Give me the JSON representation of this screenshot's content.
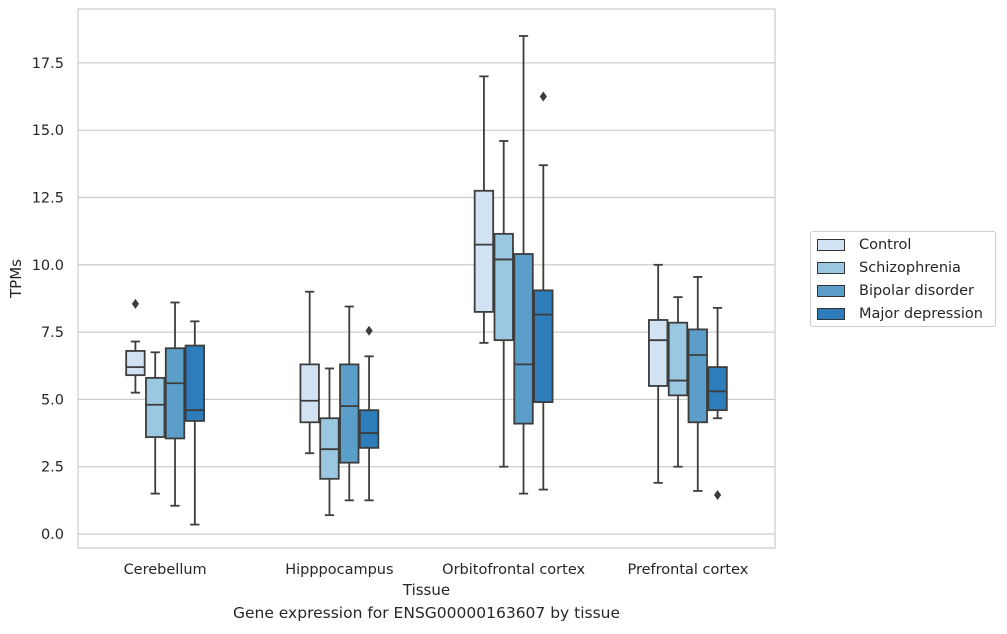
{
  "caption": "Gene expression for ENSG00000163607 by tissue",
  "chart_data": {
    "type": "box",
    "title": "",
    "xlabel": "Tissue",
    "ylabel": "TPMs",
    "ylim": [
      -0.5,
      19.3
    ],
    "yticks": [
      0.0,
      2.5,
      5.0,
      7.5,
      10.0,
      12.5,
      15.0,
      17.5
    ],
    "ytick_labels": [
      "0.0",
      "2.5",
      "5.0",
      "7.5",
      "10.0",
      "12.5",
      "15.0",
      "17.5"
    ],
    "grid": "horizontal",
    "legend_position": "right",
    "categories": [
      "Cerebellum",
      "Hipppocampus",
      "Orbitofrontal cortex",
      "Prefrontal cortex"
    ],
    "series": [
      {
        "name": "Control",
        "color": "#d1e2f2",
        "boxes": [
          {
            "whisker_low": 5.25,
            "q1": 5.9,
            "median": 6.2,
            "q3": 6.8,
            "whisker_high": 7.15,
            "outliers": [
              8.55
            ]
          },
          {
            "whisker_low": 3.0,
            "q1": 4.15,
            "median": 4.95,
            "q3": 6.3,
            "whisker_high": 9.0,
            "outliers": []
          },
          {
            "whisker_low": 7.1,
            "q1": 8.25,
            "median": 10.75,
            "q3": 12.75,
            "whisker_high": 17.0,
            "outliers": []
          },
          {
            "whisker_low": 1.9,
            "q1": 5.5,
            "median": 7.2,
            "q3": 7.95,
            "whisker_high": 10.0,
            "outliers": []
          }
        ]
      },
      {
        "name": "Schizophrenia",
        "color": "#9ac8e0",
        "boxes": [
          {
            "whisker_low": 1.5,
            "q1": 3.6,
            "median": 4.8,
            "q3": 5.8,
            "whisker_high": 6.75,
            "outliers": []
          },
          {
            "whisker_low": 0.7,
            "q1": 2.05,
            "median": 3.15,
            "q3": 4.3,
            "whisker_high": 6.15,
            "outliers": []
          },
          {
            "whisker_low": 2.5,
            "q1": 7.2,
            "median": 10.2,
            "q3": 11.15,
            "whisker_high": 14.6,
            "outliers": []
          },
          {
            "whisker_low": 2.5,
            "q1": 5.15,
            "median": 5.7,
            "q3": 7.85,
            "whisker_high": 8.8,
            "outliers": []
          }
        ]
      },
      {
        "name": "Bipolar disorder",
        "color": "#5b9ec9",
        "boxes": [
          {
            "whisker_low": 1.05,
            "q1": 3.55,
            "median": 5.6,
            "q3": 6.9,
            "whisker_high": 8.6,
            "outliers": []
          },
          {
            "whisker_low": 1.25,
            "q1": 2.65,
            "median": 4.75,
            "q3": 6.3,
            "whisker_high": 8.45,
            "outliers": []
          },
          {
            "whisker_low": 1.5,
            "q1": 4.1,
            "median": 6.3,
            "q3": 10.4,
            "whisker_high": 18.5,
            "outliers": []
          },
          {
            "whisker_low": 1.6,
            "q1": 4.15,
            "median": 6.65,
            "q3": 7.6,
            "whisker_high": 9.55,
            "outliers": []
          }
        ]
      },
      {
        "name": "Major depression",
        "color": "#2d7dbb",
        "boxes": [
          {
            "whisker_low": 0.35,
            "q1": 4.2,
            "median": 4.6,
            "q3": 7.0,
            "whisker_high": 7.9,
            "outliers": []
          },
          {
            "whisker_low": 1.25,
            "q1": 3.2,
            "median": 3.75,
            "q3": 4.6,
            "whisker_high": 6.6,
            "outliers": [
              7.55
            ]
          },
          {
            "whisker_low": 1.65,
            "q1": 4.9,
            "median": 8.15,
            "q3": 9.05,
            "whisker_high": 13.7,
            "outliers": [
              16.25
            ]
          },
          {
            "whisker_low": 4.3,
            "q1": 4.6,
            "median": 5.3,
            "q3": 6.2,
            "whisker_high": 8.4,
            "outliers": [
              1.45
            ]
          }
        ]
      }
    ]
  }
}
